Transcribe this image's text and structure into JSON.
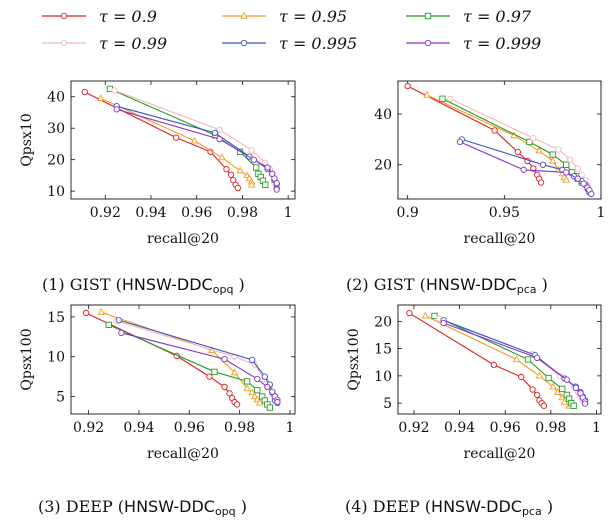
{
  "legend": [
    {
      "label": "τ = 0.9",
      "color": "#dd1e1e",
      "marker": "circle"
    },
    {
      "label": "τ = 0.95",
      "color": "#f39b21",
      "marker": "triangle"
    },
    {
      "label": "τ = 0.97",
      "color": "#279b27",
      "marker": "square"
    },
    {
      "label": "τ = 0.99",
      "color": "#f4b8b8",
      "marker": "circle"
    },
    {
      "label": "τ = 0.995",
      "color": "#3a55c5",
      "marker": "circle"
    },
    {
      "label": "τ = 0.999",
      "color": "#8a34c7",
      "marker": "circle"
    }
  ],
  "captions": [
    {
      "prefix": "(1) GIST (",
      "method": "HNSW-DDC",
      "sub": "opq",
      "suffix": " )"
    },
    {
      "prefix": "(2) GIST (",
      "method": "HNSW-DDC",
      "sub": "pca",
      "suffix": " )"
    },
    {
      "prefix": "(3) DEEP (",
      "method": "HNSW-DDC",
      "sub": "opq",
      "suffix": " )"
    },
    {
      "prefix": "(4) DEEP (",
      "method": "HNSW-DDC",
      "sub": "pca",
      "suffix": " )"
    }
  ],
  "chart_data": [
    {
      "type": "line",
      "xlabel": "recall@20",
      "ylabel": "Qpsx10",
      "xlim": [
        0.905,
        1.003
      ],
      "ylim": [
        7.5,
        45
      ],
      "xticks": [
        0.92,
        0.94,
        0.96,
        0.98,
        1
      ],
      "xticklabels": [
        "0.92",
        "0.94",
        "0.96",
        "0.98",
        "1"
      ],
      "yticks": [
        10,
        20,
        30,
        40
      ],
      "yticklabels": [
        "10",
        "20",
        "30",
        "40"
      ],
      "series": [
        {
          "name": "τ = 0.9",
          "points": [
            [
              0.911,
              41.5
            ],
            [
              0.951,
              27
            ],
            [
              0.966,
              22.5
            ],
            [
              0.973,
              17
            ],
            [
              0.975,
              15.2
            ],
            [
              0.976,
              13.5
            ],
            [
              0.977,
              12
            ],
            [
              0.978,
              11
            ]
          ]
        },
        {
          "name": "τ = 0.95",
          "points": [
            [
              0.918,
              39.5
            ],
            [
              0.959,
              26
            ],
            [
              0.971,
              20.7
            ],
            [
              0.979,
              16.5
            ],
            [
              0.982,
              15
            ],
            [
              0.983,
              14
            ],
            [
              0.984,
              13
            ],
            [
              0.984,
              12
            ]
          ]
        },
        {
          "name": "τ = 0.97",
          "points": [
            [
              0.922,
              42.5
            ],
            [
              0.968,
              27.8
            ],
            [
              0.979,
              22.5
            ],
            [
              0.986,
              17.5
            ],
            [
              0.987,
              15.5
            ],
            [
              0.988,
              14.5
            ],
            [
              0.989,
              13.3
            ],
            [
              0.99,
              12
            ]
          ]
        },
        {
          "name": "τ = 0.99",
          "points": [
            [
              0.924,
              42
            ],
            [
              0.97,
              29.5
            ],
            [
              0.984,
              23
            ],
            [
              0.99,
              19
            ],
            [
              0.992,
              17
            ],
            [
              0.993,
              15.5
            ],
            [
              0.994,
              14
            ],
            [
              0.994,
              12.5
            ]
          ]
        },
        {
          "name": "τ = 0.995",
          "points": [
            [
              0.925,
              37
            ],
            [
              0.968,
              28.5
            ],
            [
              0.983,
              21
            ],
            [
              0.991,
              17
            ],
            [
              0.993,
              15.5
            ],
            [
              0.994,
              13.5
            ],
            [
              0.995,
              12.2
            ],
            [
              0.995,
              10.8
            ]
          ]
        },
        {
          "name": "τ = 0.999",
          "points": [
            [
              0.925,
              36
            ],
            [
              0.97,
              26.5
            ],
            [
              0.985,
              20
            ],
            [
              0.991,
              17.5
            ],
            [
              0.993,
              15.5
            ],
            [
              0.994,
              14
            ],
            [
              0.995,
              12.5
            ],
            [
              0.995,
              10.5
            ]
          ]
        }
      ]
    },
    {
      "type": "line",
      "xlabel": "recall@20",
      "ylabel": "",
      "xlim": [
        0.895,
        1.0
      ],
      "ylim": [
        6.5,
        53
      ],
      "xticks": [
        0.9,
        0.95,
        1
      ],
      "xticklabels": [
        "0.9",
        "0.95",
        "1"
      ],
      "yticks": [
        20,
        40
      ],
      "yticklabels": [
        "20",
        "40"
      ],
      "series": [
        {
          "name": "τ = 0.9",
          "points": [
            [
              0.9,
              51
            ],
            [
              0.945,
              33.5
            ],
            [
              0.957,
              25
            ],
            [
              0.962,
              21.5
            ],
            [
              0.965,
              18.5
            ],
            [
              0.967,
              16
            ],
            [
              0.968,
              14.5
            ],
            [
              0.969,
              13
            ]
          ]
        },
        {
          "name": "τ = 0.95",
          "points": [
            [
              0.91,
              47.5
            ],
            [
              0.955,
              31.5
            ],
            [
              0.968,
              25.5
            ],
            [
              0.975,
              21.5
            ],
            [
              0.978,
              18
            ],
            [
              0.98,
              16.5
            ],
            [
              0.981,
              15
            ],
            [
              0.982,
              14
            ]
          ]
        },
        {
          "name": "τ = 0.97",
          "points": [
            [
              0.918,
              46
            ],
            [
              0.963,
              29
            ],
            [
              0.975,
              24
            ],
            [
              0.982,
              20
            ],
            [
              0.985,
              17
            ],
            [
              0.987,
              15.5
            ],
            [
              0.988,
              14.5
            ],
            [
              0.99,
              13
            ]
          ]
        },
        {
          "name": "τ = 0.99",
          "points": [
            [
              0.922,
              46
            ],
            [
              0.965,
              30.5
            ],
            [
              0.978,
              26
            ],
            [
              0.984,
              22
            ],
            [
              0.988,
              18.5
            ],
            [
              0.99,
              16
            ],
            [
              0.992,
              14
            ],
            [
              0.993,
              12
            ]
          ]
        },
        {
          "name": "τ = 0.995",
          "points": [
            [
              0.928,
              30
            ],
            [
              0.97,
              20
            ],
            [
              0.98,
              18
            ],
            [
              0.986,
              15.5
            ],
            [
              0.99,
              13.5
            ],
            [
              0.992,
              12
            ],
            [
              0.993,
              10.5
            ],
            [
              0.994,
              9
            ]
          ]
        },
        {
          "name": "τ = 0.999",
          "points": [
            [
              0.927,
              29
            ],
            [
              0.96,
              18
            ],
            [
              0.982,
              17
            ],
            [
              0.988,
              14.5
            ],
            [
              0.991,
              12.5
            ],
            [
              0.993,
              11
            ],
            [
              0.994,
              10
            ],
            [
              0.995,
              8.5
            ]
          ]
        }
      ]
    },
    {
      "type": "line",
      "xlabel": "recall@20",
      "ylabel": "Qpsx100",
      "xlim": [
        0.913,
        1.002
      ],
      "ylim": [
        2.8,
        16.5
      ],
      "xticks": [
        0.92,
        0.94,
        0.96,
        0.98,
        1
      ],
      "xticklabels": [
        "0.92",
        "0.94",
        "0.96",
        "0.98",
        "1"
      ],
      "yticks": [
        5,
        10,
        15
      ],
      "yticklabels": [
        "5",
        "10",
        "15"
      ],
      "series": [
        {
          "name": "τ = 0.9",
          "points": [
            [
              0.919,
              15.5
            ],
            [
              0.955,
              10.1
            ],
            [
              0.968,
              7.5
            ],
            [
              0.974,
              6.2
            ],
            [
              0.976,
              5.4
            ],
            [
              0.977,
              4.8
            ],
            [
              0.978,
              4.3
            ],
            [
              0.979,
              4
            ]
          ]
        },
        {
          "name": "τ = 0.95",
          "points": [
            [
              0.925,
              15.6
            ],
            [
              0.969,
              10.8
            ],
            [
              0.978,
              8
            ],
            [
              0.983,
              6
            ],
            [
              0.985,
              5.5
            ],
            [
              0.986,
              5
            ],
            [
              0.987,
              4.6
            ],
            [
              0.988,
              4.2
            ]
          ]
        },
        {
          "name": "τ = 0.97",
          "points": [
            [
              0.928,
              14
            ],
            [
              0.97,
              8.1
            ],
            [
              0.983,
              6.9
            ],
            [
              0.987,
              5.8
            ],
            [
              0.989,
              5
            ],
            [
              0.99,
              4.5
            ],
            [
              0.991,
              4
            ],
            [
              0.992,
              3.6
            ]
          ]
        },
        {
          "name": "τ = 0.99",
          "points": [
            [
              0.931,
              14.5
            ],
            [
              0.978,
              10
            ],
            [
              0.986,
              9
            ],
            [
              0.99,
              7.2
            ],
            [
              0.992,
              6.3
            ],
            [
              0.993,
              5.5
            ],
            [
              0.994,
              5
            ],
            [
              0.994,
              4.6
            ]
          ]
        },
        {
          "name": "τ = 0.995",
          "points": [
            [
              0.932,
              14.6
            ],
            [
              0.985,
              9.6
            ],
            [
              0.99,
              7.5
            ],
            [
              0.992,
              6.5
            ],
            [
              0.993,
              5.5
            ],
            [
              0.994,
              5
            ],
            [
              0.994,
              4.5
            ],
            [
              0.995,
              4.2
            ]
          ]
        },
        {
          "name": "τ = 0.999",
          "points": [
            [
              0.933,
              13
            ],
            [
              0.974,
              9.7
            ],
            [
              0.987,
              7.2
            ],
            [
              0.991,
              6.2
            ],
            [
              0.993,
              5.6
            ],
            [
              0.994,
              5
            ],
            [
              0.995,
              4.6
            ],
            [
              0.995,
              4.3
            ]
          ]
        }
      ]
    },
    {
      "type": "line",
      "xlabel": "recall@20",
      "ylabel": "Qpsx100",
      "xlim": [
        0.913,
        1.002
      ],
      "ylim": [
        3,
        23
      ],
      "xticks": [
        0.92,
        0.94,
        0.96,
        0.98,
        1
      ],
      "xticklabels": [
        "0.92",
        "0.94",
        "0.96",
        "0.98",
        "1"
      ],
      "yticks": [
        5,
        10,
        15,
        20
      ],
      "yticklabels": [
        "5",
        "10",
        "15",
        "20"
      ],
      "series": [
        {
          "name": "τ = 0.9",
          "points": [
            [
              0.918,
              21.5
            ],
            [
              0.955,
              12
            ],
            [
              0.967,
              9.8
            ],
            [
              0.972,
              7.5
            ],
            [
              0.974,
              6.5
            ],
            [
              0.975,
              5.5
            ],
            [
              0.976,
              5
            ],
            [
              0.977,
              4.5
            ]
          ]
        },
        {
          "name": "τ = 0.95",
          "points": [
            [
              0.925,
              21
            ],
            [
              0.965,
              13
            ],
            [
              0.975,
              10
            ],
            [
              0.981,
              8
            ],
            [
              0.983,
              7
            ],
            [
              0.985,
              6
            ],
            [
              0.986,
              5.2
            ],
            [
              0.988,
              4.5
            ]
          ]
        },
        {
          "name": "τ = 0.97",
          "points": [
            [
              0.929,
              21
            ],
            [
              0.97,
              13
            ],
            [
              0.979,
              9.6
            ],
            [
              0.985,
              7.6
            ],
            [
              0.987,
              6.5
            ],
            [
              0.988,
              5.8
            ],
            [
              0.989,
              5
            ],
            [
              0.99,
              4.5
            ]
          ]
        },
        {
          "name": "τ = 0.99",
          "points": [
            [
              0.931,
              20.5
            ],
            [
              0.972,
              14
            ],
            [
              0.984,
              10
            ],
            [
              0.99,
              8.2
            ],
            [
              0.992,
              7
            ],
            [
              0.993,
              6.2
            ],
            [
              0.994,
              5.5
            ],
            [
              0.995,
              5
            ]
          ]
        },
        {
          "name": "τ = 0.995",
          "points": [
            [
              0.933,
              20.2
            ],
            [
              0.973,
              13.8
            ],
            [
              0.986,
              9.5
            ],
            [
              0.991,
              8
            ],
            [
              0.993,
              7
            ],
            [
              0.994,
              6.2
            ],
            [
              0.995,
              5.5
            ],
            [
              0.995,
              5
            ]
          ]
        },
        {
          "name": "τ = 0.999",
          "points": [
            [
              0.933,
              19.7
            ],
            [
              0.974,
              13.3
            ],
            [
              0.987,
              9.3
            ],
            [
              0.991,
              7.8
            ],
            [
              0.993,
              6.8
            ],
            [
              0.994,
              6
            ],
            [
              0.995,
              5.3
            ],
            [
              0.995,
              4.9
            ]
          ]
        }
      ]
    }
  ]
}
